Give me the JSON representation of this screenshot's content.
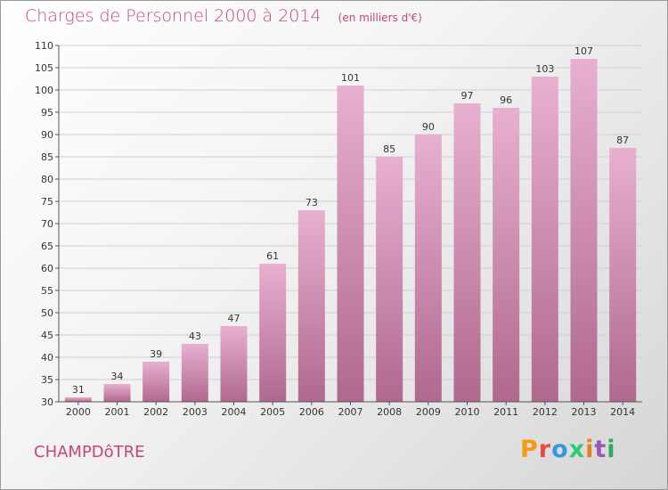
{
  "header": {
    "title": "Charges de Personnel 2000 à 2014",
    "subtitle": "(en milliers d'€)"
  },
  "footer": {
    "commune": "CHAMPDôTRE",
    "logo_text": "Proxiti",
    "logo_colors": [
      "#f39c12",
      "#e74c3c",
      "#3498db",
      "#2ecc71",
      "#e67e22",
      "#9b59b6",
      "#27ae60"
    ]
  },
  "colors": {
    "accent": "#c24a6e",
    "bar_light": "#e8b0d0",
    "bar_dark": "#b0688f",
    "grid": "#cfcfcf"
  },
  "chart_data": {
    "type": "bar",
    "title": "Charges de Personnel 2000 à 2014",
    "subtitle": "(en milliers d'€)",
    "categories": [
      "2000",
      "2001",
      "2002",
      "2003",
      "2004",
      "2005",
      "2006",
      "2007",
      "2008",
      "2009",
      "2010",
      "2011",
      "2012",
      "2013",
      "2014"
    ],
    "values": [
      31,
      34,
      39,
      43,
      47,
      61,
      73,
      101,
      85,
      90,
      97,
      96,
      103,
      107,
      87
    ],
    "ylim": [
      30,
      110
    ],
    "yticks": [
      30,
      35,
      40,
      45,
      50,
      55,
      60,
      65,
      70,
      75,
      80,
      85,
      90,
      95,
      100,
      105,
      110
    ],
    "xlabel": "",
    "ylabel": "",
    "grid": true,
    "data_labels": true
  }
}
